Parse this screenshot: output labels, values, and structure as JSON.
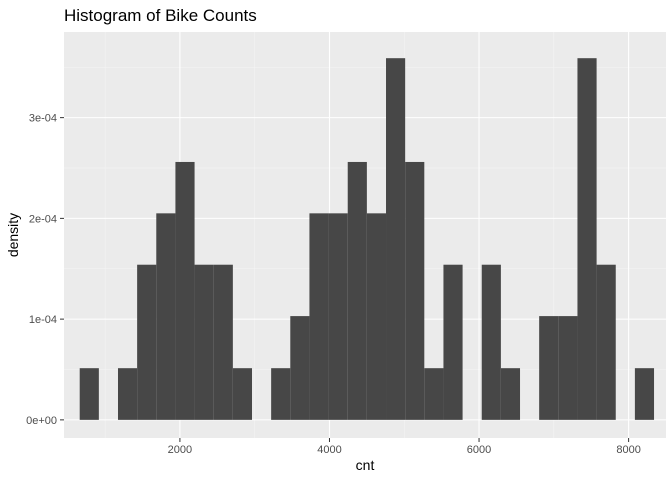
{
  "chart_data": {
    "type": "bar",
    "subtype": "histogram",
    "title": "Histogram of Bike Counts",
    "xlabel": "cnt",
    "ylabel": "density",
    "xlim": [
      450,
      8500
    ],
    "ylim": [
      -1.8e-05,
      0.000385
    ],
    "x_ticks": [
      {
        "value": 2000,
        "label": "2000"
      },
      {
        "value": 4000,
        "label": "4000"
      },
      {
        "value": 6000,
        "label": "6000"
      },
      {
        "value": 8000,
        "label": "8000"
      }
    ],
    "y_ticks": [
      {
        "value": 0,
        "label": "0e+00"
      },
      {
        "value": 0.0001,
        "label": "1e-04"
      },
      {
        "value": 0.0002,
        "label": "2e-04"
      },
      {
        "value": 0.0003,
        "label": "3e-04"
      }
    ],
    "minor_x_ticks": [
      1000,
      3000,
      5000,
      7000
    ],
    "minor_y_ticks": [
      5e-05,
      0.00015,
      0.00025,
      0.00035
    ],
    "grid": true,
    "bin_width": 256,
    "bins": [
      {
        "x0": 660,
        "density": 5.13e-05
      },
      {
        "x0": 916,
        "density": 0
      },
      {
        "x0": 1172,
        "density": 5.13e-05
      },
      {
        "x0": 1428,
        "density": 0.000154
      },
      {
        "x0": 1684,
        "density": 0.000205
      },
      {
        "x0": 1940,
        "density": 0.000256
      },
      {
        "x0": 2196,
        "density": 0.000154
      },
      {
        "x0": 2452,
        "density": 0.000154
      },
      {
        "x0": 2708,
        "density": 5.13e-05
      },
      {
        "x0": 2964,
        "density": 0
      },
      {
        "x0": 3220,
        "density": 5.13e-05
      },
      {
        "x0": 3476,
        "density": 0.000103
      },
      {
        "x0": 3732,
        "density": 0.000205
      },
      {
        "x0": 3988,
        "density": 0.000205
      },
      {
        "x0": 4244,
        "density": 0.000256
      },
      {
        "x0": 4500,
        "density": 0.000205
      },
      {
        "x0": 4756,
        "density": 0.000359
      },
      {
        "x0": 5012,
        "density": 0.000256
      },
      {
        "x0": 5268,
        "density": 5.13e-05
      },
      {
        "x0": 5524,
        "density": 0.000154
      },
      {
        "x0": 5780,
        "density": 0
      },
      {
        "x0": 6036,
        "density": 0.000154
      },
      {
        "x0": 6292,
        "density": 5.13e-05
      },
      {
        "x0": 6548,
        "density": 0
      },
      {
        "x0": 6804,
        "density": 0.000103
      },
      {
        "x0": 7060,
        "density": 0.000103
      },
      {
        "x0": 7316,
        "density": 0.000359
      },
      {
        "x0": 7572,
        "density": 0.000154
      },
      {
        "x0": 7828,
        "density": 0
      },
      {
        "x0": 8084,
        "density": 5.13e-05
      }
    ],
    "colors": {
      "panel_background": "#ebebeb",
      "grid_major": "#ffffff",
      "grid_minor": "#f5f5f5",
      "bar_fill": "#474747",
      "tick_color": "#333333",
      "tick_label_color": "#4d4d4d",
      "page_background": "#ffffff"
    }
  }
}
